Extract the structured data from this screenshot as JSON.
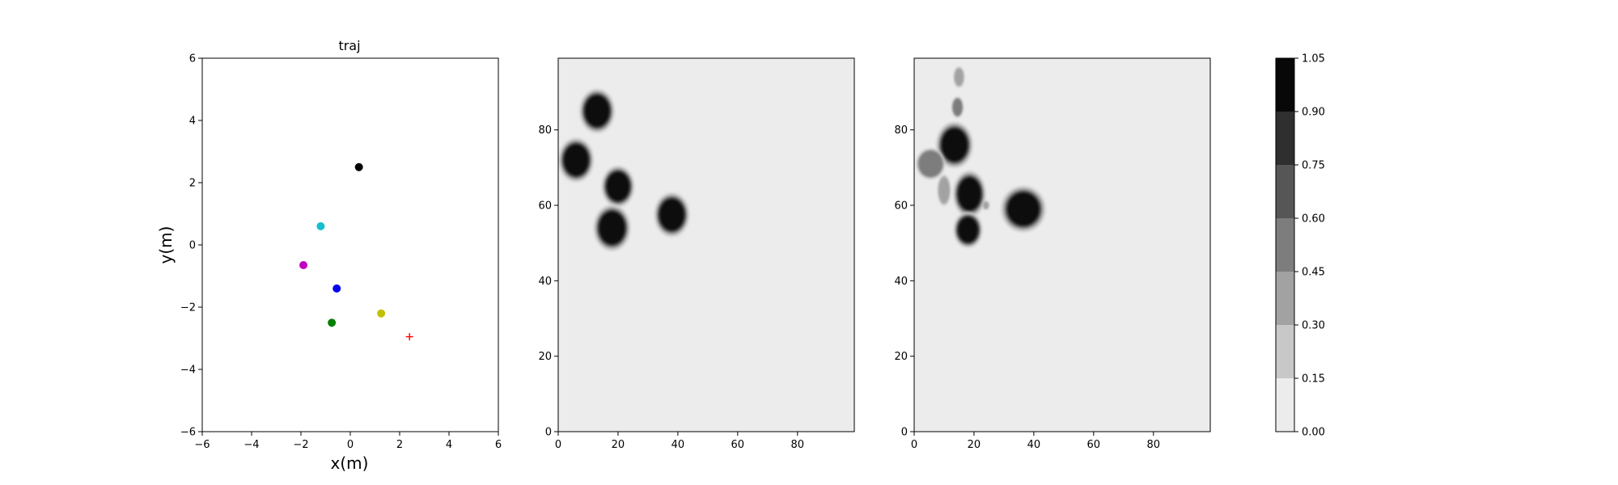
{
  "chart_data": [
    {
      "type": "scatter",
      "title": "traj",
      "xlabel": "x(m)",
      "ylabel": "y(m)",
      "xlim": [
        -6,
        6
      ],
      "ylim": [
        -6,
        6
      ],
      "xticks": [
        "−6",
        "−4",
        "−2",
        "0",
        "2",
        "4",
        "6"
      ],
      "yticks": [
        "−6",
        "−4",
        "−2",
        "0",
        "2",
        "4",
        "6"
      ],
      "grid": false,
      "points": [
        {
          "x": 0.35,
          "y": 2.5,
          "color": "#000000",
          "marker": "circle"
        },
        {
          "x": -1.2,
          "y": 0.6,
          "color": "#17becf",
          "marker": "circle"
        },
        {
          "x": -1.9,
          "y": -0.65,
          "color": "#c000c0",
          "marker": "circle"
        },
        {
          "x": -0.55,
          "y": -1.4,
          "color": "#0000ee",
          "marker": "circle"
        },
        {
          "x": 1.25,
          "y": -2.2,
          "color": "#c0c000",
          "marker": "circle"
        },
        {
          "x": -0.75,
          "y": -2.5,
          "color": "#007f00",
          "marker": "circle"
        },
        {
          "x": 2.4,
          "y": -2.95,
          "color": "#ff0000",
          "marker": "plus"
        }
      ]
    },
    {
      "type": "heatmap",
      "title": "",
      "xlim": [
        0,
        99
      ],
      "ylim": [
        0,
        99
      ],
      "xticks": [
        "0",
        "20",
        "40",
        "60",
        "80"
      ],
      "yticks": [
        "0",
        "20",
        "40",
        "60",
        "80"
      ],
      "background_value": 0.05,
      "blobs": [
        {
          "x": 13,
          "y": 85,
          "r": 4.3,
          "value": 1.0
        },
        {
          "x": 6,
          "y": 72,
          "r": 4.3,
          "value": 1.0
        },
        {
          "x": 20,
          "y": 65,
          "r": 4.0,
          "value": 1.0
        },
        {
          "x": 18,
          "y": 54,
          "r": 4.5,
          "value": 1.0
        },
        {
          "x": 38,
          "y": 57.5,
          "r": 4.3,
          "value": 1.0
        }
      ]
    },
    {
      "type": "heatmap",
      "title": "",
      "xlim": [
        0,
        99
      ],
      "ylim": [
        0,
        99
      ],
      "xticks": [
        "0",
        "20",
        "40",
        "60",
        "80"
      ],
      "yticks": [
        "0",
        "20",
        "40",
        "60",
        "80"
      ],
      "background_value": 0.05,
      "blobs": [
        {
          "x": 15,
          "y": 94,
          "rx": 1.2,
          "ry": 2.0,
          "value": 0.35
        },
        {
          "x": 14.5,
          "y": 86,
          "rx": 1.3,
          "ry": 2.0,
          "value": 0.45
        },
        {
          "x": 13.5,
          "y": 76,
          "rx": 4.5,
          "ry": 4.5,
          "value": 1.0
        },
        {
          "x": 5.5,
          "y": 71,
          "rx": 3.5,
          "ry": 3.0,
          "value": 0.55
        },
        {
          "x": 10,
          "y": 64,
          "rx": 1.5,
          "ry": 3.0,
          "value": 0.3
        },
        {
          "x": 18.5,
          "y": 63,
          "rx": 4.0,
          "ry": 4.5,
          "value": 1.0
        },
        {
          "x": 24,
          "y": 60,
          "rx": 0.7,
          "ry": 0.8,
          "value": 0.3
        },
        {
          "x": 36.5,
          "y": 59,
          "rx": 5.5,
          "ry": 4.5,
          "value": 1.0
        },
        {
          "x": 18,
          "y": 53.5,
          "rx": 3.5,
          "ry": 3.5,
          "value": 1.0
        }
      ]
    }
  ],
  "colorbar": {
    "levels": [
      0.0,
      0.15,
      0.3,
      0.45,
      0.6,
      0.75,
      0.9,
      1.05
    ],
    "labels": [
      "0.00",
      "0.15",
      "0.30",
      "0.45",
      "0.60",
      "0.75",
      "0.90",
      "1.05"
    ],
    "colors": [
      "#ececec",
      "#c8c8c8",
      "#a2a2a2",
      "#7d7d7d",
      "#565656",
      "#2f2f2f",
      "#080808"
    ]
  }
}
